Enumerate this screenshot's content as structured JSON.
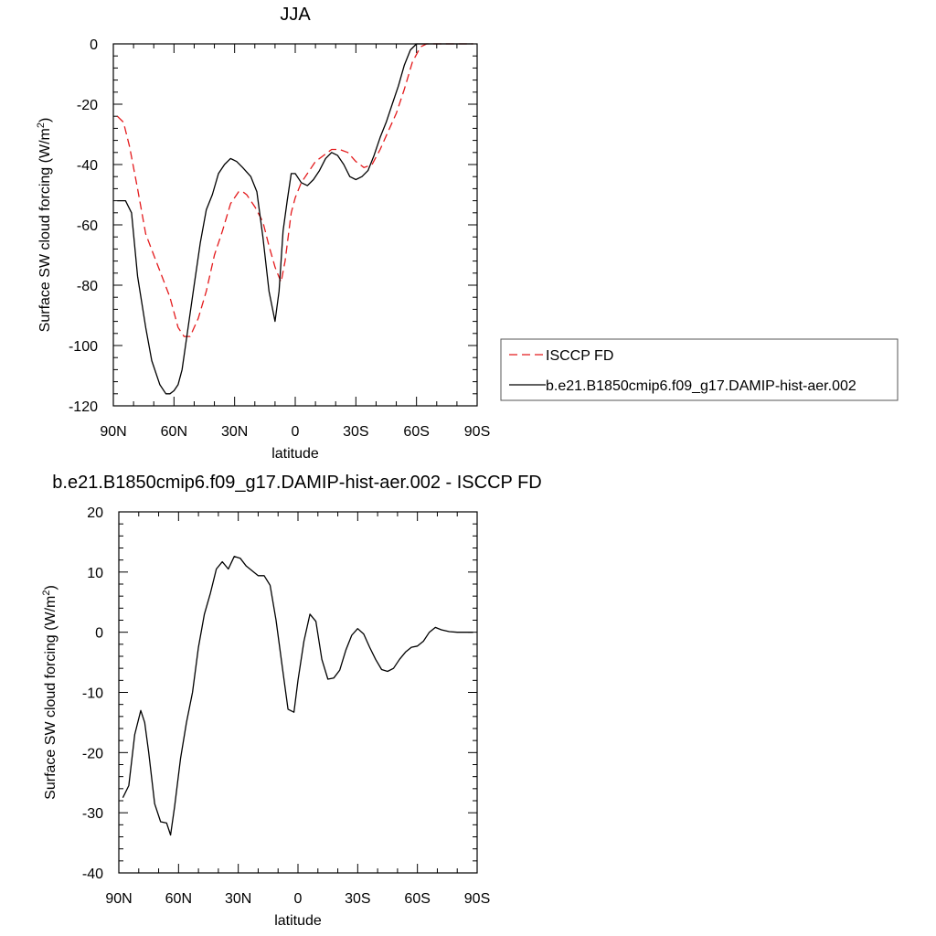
{
  "chart_data": [
    {
      "type": "line",
      "title": "JJA",
      "xlabel": "latitude",
      "ylabel": "Surface SW cloud forcing (W/m",
      "ylabel_sup": "2",
      "ylabel_end": ")",
      "xlim": [
        90,
        -90
      ],
      "ylim": [
        -120,
        0
      ],
      "xticks": [
        90,
        60,
        30,
        0,
        -30,
        -60,
        -90
      ],
      "xtick_labels": [
        "90N",
        "60N",
        "30N",
        "0",
        "30S",
        "60S",
        "90S"
      ],
      "yticks": [
        0,
        -20,
        -40,
        -60,
        -80,
        -100,
        -120
      ],
      "ytick_labels": [
        "0",
        "-20",
        "-40",
        "-60",
        "-80",
        "-100",
        "-120"
      ],
      "legend_placement": "right",
      "series": [
        {
          "name": "ISCCP FD",
          "color": "#e41a1c",
          "dash": "dashed",
          "x": [
            88,
            85,
            82,
            78,
            74,
            70,
            66,
            62,
            58,
            55,
            52,
            48,
            44,
            40,
            36,
            32,
            28,
            26,
            24,
            20,
            16,
            13,
            10,
            7,
            5,
            2,
            0,
            -3,
            -6,
            -10,
            -14,
            -18,
            -22,
            -26,
            -30,
            -34,
            -38,
            -42,
            -46,
            -50,
            -54,
            -58,
            -62,
            -65,
            -68,
            -72,
            -76,
            -80,
            -84,
            -88
          ],
          "y": [
            -24,
            -26,
            -34,
            -48,
            -63,
            -70,
            -77,
            -84,
            -94,
            -97,
            -97,
            -91,
            -82,
            -70,
            -62,
            -53,
            -49,
            -49,
            -50,
            -54,
            -59,
            -67,
            -74,
            -79,
            -72,
            -56,
            -51,
            -46,
            -43,
            -39,
            -37,
            -35,
            -35,
            -36,
            -39,
            -41,
            -40,
            -35,
            -29,
            -23,
            -15,
            -6,
            -1,
            0,
            0,
            0,
            0,
            0,
            0,
            0
          ]
        },
        {
          "name": "b.e21.B1850cmip6.f09_g17.DAMIP-hist-aer.002",
          "color": "#000000",
          "dash": "solid",
          "x": [
            88,
            84,
            81,
            78,
            74,
            71,
            67,
            64,
            62,
            60,
            58,
            56,
            53,
            50,
            47,
            44,
            41,
            38,
            35,
            32,
            29,
            26,
            22,
            19,
            16,
            13,
            10,
            8,
            6,
            4,
            2,
            0,
            -3,
            -6,
            -9,
            -12,
            -15,
            -18,
            -21,
            -24,
            -27,
            -30,
            -33,
            -36,
            -39,
            -42,
            -45,
            -48,
            -51,
            -54,
            -57,
            -60,
            -62,
            -64,
            -66,
            -69,
            -72,
            -76,
            -80,
            -84,
            -88
          ],
          "y": [
            -52,
            -52,
            -56,
            -77,
            -94,
            -105,
            -113,
            -116,
            -116,
            -115,
            -113,
            -108,
            -94,
            -80,
            -66,
            -55,
            -50,
            -43,
            -40,
            -38,
            -39,
            -41,
            -44,
            -49,
            -64,
            -82,
            -92,
            -82,
            -62,
            -52,
            -43,
            -43,
            -46,
            -47,
            -45,
            -42,
            -38,
            -36,
            -37,
            -40,
            -44,
            -45,
            -44,
            -42,
            -37,
            -31,
            -26,
            -20,
            -14,
            -7,
            -2,
            0,
            0,
            0,
            0,
            0,
            0,
            0,
            0,
            0,
            0
          ]
        }
      ]
    },
    {
      "type": "line",
      "title": "b.e21.B1850cmip6.f09_g17.DAMIP-hist-aer.002 - ISCCP FD",
      "xlabel": "latitude",
      "ylabel": "Surface SW cloud forcing (W/m",
      "ylabel_sup": "2",
      "ylabel_end": ")",
      "xlim": [
        90,
        -90
      ],
      "ylim": [
        -40,
        20
      ],
      "xticks": [
        90,
        60,
        30,
        0,
        -30,
        -60,
        -90
      ],
      "xtick_labels": [
        "90N",
        "60N",
        "30N",
        "0",
        "30S",
        "60S",
        "90S"
      ],
      "yticks": [
        20,
        10,
        0,
        -10,
        -20,
        -30,
        -40
      ],
      "ytick_labels": [
        "20",
        "10",
        "0",
        "-10",
        "-20",
        "-30",
        "-40"
      ],
      "series": [
        {
          "color": "#000000",
          "dash": "solid",
          "x": [
            88,
            85,
            82,
            79,
            77,
            75,
            72,
            69,
            66,
            64,
            62,
            59,
            56,
            53,
            50,
            47,
            44,
            41,
            38,
            35,
            32,
            29,
            26,
            23,
            20,
            17,
            14,
            11,
            8,
            5,
            2,
            0,
            -3,
            -6,
            -9,
            -12,
            -15,
            -18,
            -21,
            -24,
            -27,
            -30,
            -33,
            -36,
            -39,
            -42,
            -45,
            -48,
            -51,
            -54,
            -57,
            -60,
            -63,
            -66,
            -69,
            -72,
            -76,
            -80,
            -84,
            -88
          ],
          "y": [
            -27.5,
            -25.5,
            -17,
            -13,
            -15,
            -20,
            -28.5,
            -31.5,
            -31.7,
            -33.7,
            -29,
            -21,
            -15,
            -10,
            -2.5,
            3,
            6.5,
            10.5,
            11.7,
            10.5,
            12.6,
            12.3,
            11,
            10.2,
            9.4,
            9.4,
            7.8,
            2,
            -5.5,
            -12.8,
            -13.3,
            -8,
            -1.5,
            3,
            1.8,
            -4.5,
            -7.8,
            -7.6,
            -6.3,
            -3,
            -0.5,
            0.6,
            -0.3,
            -2.5,
            -4.5,
            -6.2,
            -6.5,
            -6,
            -4.5,
            -3.3,
            -2.5,
            -2.3,
            -1.5,
            0,
            0.8,
            0.4,
            0.1,
            0,
            0,
            0
          ]
        }
      ]
    }
  ]
}
